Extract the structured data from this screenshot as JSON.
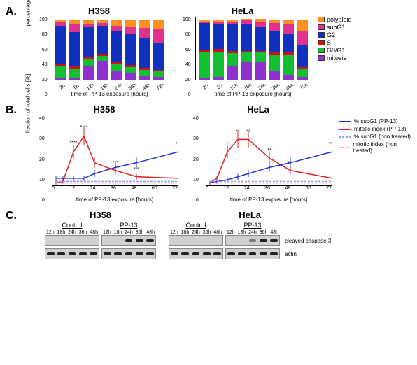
{
  "panels": {
    "A": {
      "label": "A."
    },
    "B": {
      "label": "B."
    },
    "C": {
      "label": "C."
    }
  },
  "cell_lines": [
    "H358",
    "HeLa"
  ],
  "colors": {
    "polyploid": "#ff9020",
    "subG1": "#e03090",
    "G2": "#1030c0",
    "S": "#d01010",
    "G0G1": "#10c030",
    "mitosis": "#9030d0",
    "subG1_line": "#2030d0",
    "mitotic_line": "#e02020",
    "subG1_nt": "#90a0ff",
    "mitotic_nt": "#ffa0a0",
    "grid": "#e0e0e0",
    "bg": "#ffffff"
  },
  "cellcycle_legend": [
    {
      "key": "polyploid",
      "label": "polyploid"
    },
    {
      "key": "subG1",
      "label": "subG1"
    },
    {
      "key": "G2",
      "label": "G2"
    },
    {
      "key": "S",
      "label": "S"
    },
    {
      "key": "G0G1",
      "label": "G0/G1"
    },
    {
      "key": "mitosis",
      "label": "mitosis"
    }
  ],
  "A": {
    "x_labels": [
      "2h",
      "6h",
      "12h",
      "18h",
      "24h",
      "36h",
      "48h",
      "72h"
    ],
    "y_label": "percentage of total cells [%]",
    "x_axis_title": "time of PP-13 exposure [hours]",
    "ylim": [
      0,
      100
    ],
    "ytick_step": 20,
    "H358": [
      {
        "mitosis": 2,
        "G0G1": 20,
        "S": 4,
        "G2": 60,
        "subG1": 5,
        "polyploid": 4
      },
      {
        "mitosis": 3,
        "G0G1": 15,
        "S": 3,
        "G2": 55,
        "subG1": 13,
        "polyploid": 6
      },
      {
        "mitosis": 22,
        "G0G1": 10,
        "S": 4,
        "G2": 48,
        "subG1": 5,
        "polyploid": 6
      },
      {
        "mitosis": 30,
        "G0G1": 8,
        "S": 3,
        "G2": 45,
        "subG1": 4,
        "polyploid": 5
      },
      {
        "mitosis": 15,
        "G0G1": 10,
        "S": 3,
        "G2": 50,
        "subG1": 8,
        "polyploid": 9
      },
      {
        "mitosis": 10,
        "G0G1": 10,
        "S": 3,
        "G2": 50,
        "subG1": 12,
        "polyploid": 10
      },
      {
        "mitosis": 6,
        "G0G1": 10,
        "S": 3,
        "G2": 48,
        "subG1": 15,
        "polyploid": 13
      },
      {
        "mitosis": 5,
        "G0G1": 8,
        "S": 3,
        "G2": 42,
        "subG1": 22,
        "polyploid": 15
      }
    ],
    "HeLa": [
      {
        "mitosis": 2,
        "G0G1": 42,
        "S": 4,
        "G2": 42,
        "subG1": 2,
        "polyploid": 3
      },
      {
        "mitosis": 5,
        "G0G1": 40,
        "S": 4,
        "G2": 40,
        "subG1": 3,
        "polyploid": 3
      },
      {
        "mitosis": 22,
        "G0G1": 20,
        "S": 4,
        "G2": 42,
        "subG1": 4,
        "polyploid": 3
      },
      {
        "mitosis": 28,
        "G0G1": 15,
        "S": 3,
        "G2": 42,
        "subG1": 6,
        "polyploid": 3
      },
      {
        "mitosis": 28,
        "G0G1": 15,
        "S": 3,
        "G2": 38,
        "subG1": 8,
        "polyploid": 5
      },
      {
        "mitosis": 15,
        "G0G1": 25,
        "S": 3,
        "G2": 35,
        "subG1": 12,
        "polyploid": 6
      },
      {
        "mitosis": 8,
        "G0G1": 32,
        "S": 3,
        "G2": 30,
        "subG1": 15,
        "polyploid": 8
      },
      {
        "mitosis": 5,
        "G0G1": 12,
        "S": 3,
        "G2": 35,
        "subG1": 22,
        "polyploid": 18
      }
    ]
  },
  "B": {
    "x_axis_title": "time of PP-13 exposure [hours]",
    "y_label": "fraction of total cells [%]",
    "x_ticks": [
      0,
      12,
      24,
      36,
      48,
      60,
      72
    ],
    "ylim": [
      0,
      45
    ],
    "ytick_step": 10,
    "legend": [
      {
        "label": "% subG1 (PP-13)",
        "color_key": "subG1_line",
        "dash": false
      },
      {
        "label": "mitotic index (PP-13)",
        "color_key": "mitotic_line",
        "dash": false
      },
      {
        "label": "% subG1 (non treated)",
        "color_key": "subG1_nt",
        "dash": true
      },
      {
        "label": "mitotic index (non treated)",
        "color_key": "mitotic_nt",
        "dash": true
      }
    ],
    "H358": {
      "times": [
        2,
        6,
        12,
        18,
        24,
        36,
        48,
        72
      ],
      "subG1": [
        5,
        5,
        5,
        5,
        8,
        12,
        15,
        22
      ],
      "mitotic": [
        2,
        3,
        22,
        32,
        15,
        10,
        6,
        5
      ],
      "subG1_nt": [
        3,
        3,
        3,
        3,
        3,
        3,
        3,
        3
      ],
      "mitotic_nt": [
        2,
        2,
        2,
        2,
        2,
        2,
        2,
        2
      ],
      "annot": [
        {
          "t": 18,
          "y": 37,
          "txt": "****"
        },
        {
          "t": 12,
          "y": 27,
          "txt": "****"
        },
        {
          "t": 36,
          "y": 14,
          "txt": "***"
        },
        {
          "t": 48,
          "y": 10,
          "txt": "***"
        },
        {
          "t": 72,
          "y": 26,
          "txt": "***"
        }
      ]
    },
    "HeLa": {
      "times": [
        2,
        6,
        12,
        18,
        24,
        36,
        48,
        72
      ],
      "subG1": [
        2,
        3,
        4,
        6,
        8,
        12,
        15,
        22
      ],
      "mitotic": [
        2,
        5,
        22,
        30,
        30,
        18,
        10,
        5
      ],
      "subG1_nt": [
        3,
        3,
        3,
        3,
        3,
        3,
        3,
        3
      ],
      "mitotic_nt": [
        2,
        2,
        2,
        2,
        2,
        2,
        2,
        2
      ],
      "annot": [
        {
          "t": 12,
          "y": 26,
          "txt": "*"
        },
        {
          "t": 18,
          "y": 34,
          "txt": "**"
        },
        {
          "t": 24,
          "y": 34,
          "txt": "**"
        },
        {
          "t": 36,
          "y": 22,
          "txt": "**"
        },
        {
          "t": 48,
          "y": 14,
          "txt": "***"
        },
        {
          "t": 72,
          "y": 26,
          "txt": "****"
        }
      ]
    }
  },
  "C": {
    "times": [
      "12h",
      "18h",
      "24h",
      "36h",
      "48h"
    ],
    "conditions": [
      "Control",
      "PP-13"
    ],
    "rows": [
      {
        "label": "cleaved caspase 3",
        "H358": {
          "Control": [
            0,
            0,
            0,
            0,
            0
          ],
          "PP-13": [
            0,
            0,
            1,
            1,
            1
          ]
        },
        "HeLa": {
          "Control": [
            0,
            0,
            0,
            0,
            0
          ],
          "PP-13": [
            0,
            0,
            0.5,
            1,
            1
          ]
        }
      },
      {
        "label": "actin",
        "H358": {
          "Control": [
            1,
            1,
            1,
            1,
            1
          ],
          "PP-13": [
            1,
            1,
            1,
            1,
            1
          ]
        },
        "HeLa": {
          "Control": [
            1,
            1,
            1,
            1,
            1
          ],
          "PP-13": [
            1,
            1,
            1,
            1,
            1
          ]
        }
      }
    ]
  }
}
